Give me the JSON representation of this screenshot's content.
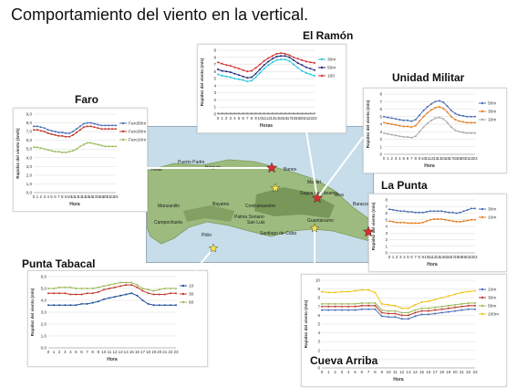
{
  "slide": {
    "title": "Comportamiento del viento en la vertical."
  },
  "map": {
    "place_labels": [
      "Turas",
      "Puerto Padre",
      "Holguín",
      "Banes",
      "Mayarí",
      "Bayamo",
      "Manzanillo",
      "Campechuela",
      "Contramaestre",
      "San Luis",
      "Palma Soriano",
      "Santiago de Cuba",
      "Guantánamo",
      "Sagua de Tánamo",
      "Moa",
      "Baracoa",
      "Pilón"
    ]
  },
  "chart_data": [
    {
      "id": "el-ramon",
      "type": "line",
      "title": "El Ramón",
      "xlabel": "Horas",
      "ylabel": "Rapidez del viento (m/s)",
      "categories": [
        "0",
        "1",
        "2",
        "3",
        "4",
        "5",
        "6",
        "7",
        "8",
        "9",
        "10",
        "11",
        "12",
        "13",
        "14",
        "15",
        "16",
        "17",
        "18",
        "19",
        "20",
        "21",
        "22",
        "23"
      ],
      "ylim": [
        0,
        9
      ],
      "yticks": [
        "0",
        "1",
        "2",
        "3",
        "4",
        "5",
        "6",
        "7",
        "8",
        "9"
      ],
      "grid": true,
      "legend": "right",
      "series": [
        {
          "name": "30m",
          "color": "#26c6da",
          "values": [
            5.6,
            5.4,
            5.3,
            5.2,
            5.0,
            4.9,
            4.8,
            4.6,
            4.7,
            5.2,
            5.8,
            6.4,
            6.9,
            7.3,
            7.6,
            7.7,
            7.7,
            7.5,
            7.0,
            6.5,
            6.1,
            5.8,
            5.6,
            5.4
          ]
        },
        {
          "name": "50m",
          "color": "#1f2a7a",
          "values": [
            6.3,
            6.1,
            6.0,
            5.9,
            5.7,
            5.5,
            5.3,
            5.1,
            5.2,
            5.7,
            6.3,
            6.9,
            7.4,
            7.8,
            8.1,
            8.2,
            8.2,
            8.0,
            7.6,
            7.2,
            6.9,
            6.6,
            6.4,
            6.2
          ]
        },
        {
          "name": "100",
          "color": "#d32f2f",
          "values": [
            7.3,
            7.1,
            6.9,
            6.8,
            6.6,
            6.4,
            6.2,
            6.0,
            6.1,
            6.5,
            7.0,
            7.5,
            7.9,
            8.2,
            8.5,
            8.6,
            8.5,
            8.3,
            8.0,
            7.8,
            7.6,
            7.4,
            7.3,
            7.2
          ]
        },
        {
          "name": "",
          "color": "#888888",
          "values": [
            0.1,
            0.1,
            0.1,
            0.1,
            0.1,
            0.1,
            0.1,
            0.1,
            0.1,
            0.1,
            0.1,
            0.1,
            0.1,
            0.1,
            0.1,
            0.1,
            0.1,
            0.1,
            0.1,
            0.1,
            0.1,
            0.1,
            0.1,
            0.1
          ]
        }
      ]
    },
    {
      "id": "faro",
      "type": "line",
      "title": "Faro",
      "xlabel": "Hora",
      "ylabel": "Rapidez del viento (km/h)",
      "categories": [
        "0",
        "1",
        "2",
        "3",
        "4",
        "5",
        "6",
        "7",
        "8",
        "9",
        "10",
        "11",
        "12",
        "13",
        "14",
        "15",
        "16",
        "17",
        "18",
        "19",
        "20",
        "21",
        "22",
        "23"
      ],
      "ylim": [
        0,
        9
      ],
      "yticks": [
        "0,0",
        "1,0",
        "2,0",
        "3,0",
        "4,0",
        "5,0",
        "6,0",
        "7,0",
        "8,0",
        "9,0"
      ],
      "grid": true,
      "legend": "right",
      "series": [
        {
          "name": "Faro50m",
          "color": "#4a6fb5",
          "values": [
            7.6,
            7.6,
            7.5,
            7.4,
            7.2,
            7.1,
            7.0,
            6.9,
            6.9,
            6.8,
            6.8,
            7.0,
            7.3,
            7.6,
            7.9,
            8.0,
            8.0,
            7.9,
            7.8,
            7.7,
            7.7,
            7.7,
            7.7,
            7.7
          ]
        },
        {
          "name": "Faro30m",
          "color": "#c0392b",
          "values": [
            7.2,
            7.2,
            7.1,
            7.0,
            6.8,
            6.7,
            6.6,
            6.5,
            6.5,
            6.4,
            6.4,
            6.6,
            6.9,
            7.2,
            7.5,
            7.6,
            7.6,
            7.5,
            7.4,
            7.3,
            7.3,
            7.3,
            7.3,
            7.3
          ]
        },
        {
          "name": "Faro10m",
          "color": "#9bbb59",
          "values": [
            5.2,
            5.2,
            5.1,
            5.0,
            4.9,
            4.8,
            4.7,
            4.7,
            4.6,
            4.6,
            4.7,
            4.8,
            5.0,
            5.3,
            5.5,
            5.7,
            5.7,
            5.6,
            5.5,
            5.4,
            5.3,
            5.3,
            5.3,
            5.3
          ]
        }
      ]
    },
    {
      "id": "unidad-militar",
      "type": "line",
      "title": "Unidad Militar",
      "xlabel": "Hora",
      "ylabel": "Rapidez del viento (m/s)",
      "categories": [
        "0",
        "1",
        "2",
        "3",
        "4",
        "5",
        "6",
        "7",
        "8",
        "9",
        "10",
        "11",
        "12",
        "13",
        "14",
        "15",
        "16",
        "17",
        "18",
        "19",
        "20",
        "21",
        "22",
        "23"
      ],
      "ylim": [
        0,
        8
      ],
      "yticks": [
        "0",
        "1",
        "2",
        "3",
        "4",
        "5",
        "6",
        "7",
        "8"
      ],
      "grid": true,
      "legend": "right",
      "series": [
        {
          "name": "50m",
          "color": "#4a6fb5",
          "values": [
            5.0,
            4.9,
            4.8,
            4.7,
            4.6,
            4.5,
            4.5,
            4.4,
            4.6,
            5.2,
            5.8,
            6.3,
            6.7,
            7.0,
            7.1,
            6.9,
            6.4,
            5.8,
            5.4,
            5.2,
            5.1,
            5.0,
            5.0,
            5.0
          ]
        },
        {
          "name": "30m",
          "color": "#e67e22",
          "values": [
            4.2,
            4.1,
            4.0,
            3.9,
            3.8,
            3.7,
            3.7,
            3.6,
            3.8,
            4.4,
            5.0,
            5.5,
            5.9,
            6.2,
            6.3,
            6.1,
            5.6,
            5.0,
            4.6,
            4.4,
            4.3,
            4.2,
            4.2,
            4.2
          ]
        },
        {
          "name": "10m",
          "color": "#a9a9a9",
          "values": [
            2.8,
            2.7,
            2.6,
            2.5,
            2.4,
            2.3,
            2.3,
            2.2,
            2.4,
            3.0,
            3.6,
            4.1,
            4.5,
            4.8,
            4.9,
            4.7,
            4.2,
            3.6,
            3.2,
            3.0,
            2.9,
            2.8,
            2.8,
            2.8
          ]
        }
      ]
    },
    {
      "id": "la-punta",
      "type": "line",
      "title": "La Punta",
      "xlabel": "Hora",
      "ylabel": "Rapidez del viento (m/s)",
      "categories": [
        "0",
        "1",
        "2",
        "3",
        "4",
        "5",
        "6",
        "7",
        "8",
        "9",
        "10",
        "11",
        "12",
        "13",
        "14",
        "15",
        "16",
        "17",
        "18",
        "19",
        "20",
        "21",
        "22",
        "23"
      ],
      "ylim": [
        0,
        8
      ],
      "yticks": [
        "0",
        "1",
        "2",
        "3",
        "4",
        "5",
        "6",
        "7",
        "8"
      ],
      "grid": true,
      "legend": "right",
      "series": [
        {
          "name": "30m",
          "color": "#4a6fb5",
          "values": [
            6.6,
            6.5,
            6.4,
            6.3,
            6.3,
            6.2,
            6.2,
            6.1,
            6.1,
            6.1,
            6.2,
            6.3,
            6.3,
            6.3,
            6.3,
            6.2,
            6.1,
            6.1,
            6.0,
            6.1,
            6.3,
            6.5,
            6.7,
            6.7
          ]
        },
        {
          "name": "10m",
          "color": "#e67e22",
          "values": [
            4.8,
            4.7,
            4.6,
            4.6,
            4.6,
            4.5,
            4.5,
            4.5,
            4.5,
            4.6,
            4.8,
            5.0,
            5.1,
            5.1,
            5.1,
            5.0,
            4.9,
            4.8,
            4.7,
            4.7,
            4.8,
            4.9,
            5.0,
            5.0
          ]
        }
      ]
    },
    {
      "id": "punta-tabacal",
      "type": "line",
      "title": "Punta Tabacal",
      "xlabel": "Hora",
      "ylabel": "Rapidez del viento (m/s)",
      "categories": [
        "0",
        "1",
        "2",
        "3",
        "4",
        "5",
        "6",
        "7",
        "8",
        "9",
        "10",
        "11",
        "12",
        "13",
        "14",
        "15",
        "16",
        "17",
        "18",
        "19",
        "20",
        "21",
        "22",
        "23"
      ],
      "ylim": [
        0,
        6
      ],
      "yticks": [
        "0,0",
        "1,0",
        "2,0",
        "3,0",
        "4,0",
        "5,0",
        "6,0"
      ],
      "grid": true,
      "legend": "right",
      "series": [
        {
          "name": "10",
          "color": "#1f4e9b",
          "values": [
            3.6,
            3.6,
            3.6,
            3.6,
            3.6,
            3.6,
            3.7,
            3.7,
            3.8,
            3.9,
            4.1,
            4.2,
            4.3,
            4.4,
            4.5,
            4.6,
            4.4,
            4.0,
            3.7,
            3.6,
            3.6,
            3.6,
            3.6,
            3.6
          ]
        },
        {
          "name": "30",
          "color": "#c0392b",
          "values": [
            4.6,
            4.6,
            4.6,
            4.6,
            4.5,
            4.5,
            4.5,
            4.6,
            4.6,
            4.7,
            4.9,
            5.0,
            5.1,
            5.2,
            5.3,
            5.3,
            5.1,
            4.8,
            4.6,
            4.5,
            4.5,
            4.5,
            4.6,
            4.6
          ]
        },
        {
          "name": "60",
          "color": "#9bbb59",
          "values": [
            5.0,
            5.0,
            5.1,
            5.1,
            5.1,
            5.0,
            5.0,
            5.0,
            5.0,
            5.1,
            5.2,
            5.3,
            5.4,
            5.5,
            5.5,
            5.5,
            5.3,
            5.0,
            4.9,
            4.8,
            4.9,
            5.0,
            5.0,
            5.0
          ]
        }
      ]
    },
    {
      "id": "cueva-arriba",
      "type": "line",
      "title": "Cueva Arriba",
      "xlabel": "Hora",
      "ylabel": "Rapidez del viento (m/s)",
      "categories": [
        "0",
        "1",
        "2",
        "3",
        "4",
        "5",
        "6",
        "7",
        "8",
        "9",
        "10",
        "11",
        "12",
        "13",
        "14",
        "15",
        "16",
        "17",
        "18",
        "19",
        "20",
        "21",
        "22",
        "23"
      ],
      "ylim": [
        0,
        10
      ],
      "yticks": [
        "0",
        "1",
        "2",
        "3",
        "4",
        "5",
        "6",
        "7",
        "8",
        "9",
        "10"
      ],
      "grid": true,
      "legend": "right",
      "series": [
        {
          "name": "10m",
          "color": "#4a6fb5",
          "values": [
            6.6,
            6.6,
            6.6,
            6.6,
            6.6,
            6.6,
            6.7,
            6.7,
            6.7,
            5.9,
            5.8,
            5.8,
            5.6,
            5.6,
            5.9,
            6.1,
            6.1,
            6.2,
            6.3,
            6.4,
            6.5,
            6.6,
            6.7,
            6.7
          ]
        },
        {
          "name": "30m",
          "color": "#c0392b",
          "values": [
            7.0,
            7.0,
            7.0,
            7.0,
            7.0,
            7.0,
            7.1,
            7.1,
            7.1,
            6.3,
            6.2,
            6.2,
            6.0,
            6.0,
            6.3,
            6.5,
            6.5,
            6.6,
            6.7,
            6.8,
            6.9,
            7.0,
            7.1,
            7.1
          ]
        },
        {
          "name": "50m",
          "color": "#9bbb59",
          "values": [
            7.3,
            7.3,
            7.3,
            7.3,
            7.3,
            7.3,
            7.4,
            7.4,
            7.4,
            6.6,
            6.5,
            6.5,
            6.3,
            6.3,
            6.6,
            6.8,
            6.8,
            6.9,
            7.0,
            7.1,
            7.2,
            7.3,
            7.4,
            7.4
          ]
        },
        {
          "name": "100m",
          "color": "#f1c40f",
          "values": [
            8.7,
            8.6,
            8.6,
            8.7,
            8.7,
            8.8,
            8.9,
            8.9,
            8.6,
            7.3,
            7.2,
            7.1,
            6.8,
            6.8,
            7.2,
            7.5,
            7.6,
            7.8,
            8.0,
            8.2,
            8.4,
            8.6,
            8.7,
            8.8
          ]
        }
      ]
    }
  ]
}
